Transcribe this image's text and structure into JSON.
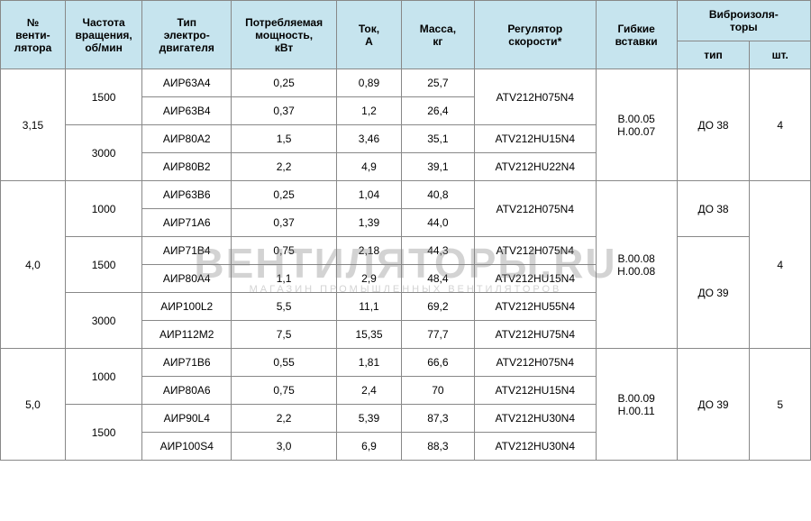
{
  "watermark": {
    "big": "ВЕНТИЛЯТОРЫ.RU",
    "small": "МАГАЗИН ПРОМЫШЛЕННЫХ ВЕНТИЛЯТОРОВ"
  },
  "headers": {
    "c0": "№\nвенти-\nлятора",
    "c1": "Частота\nвращения,\nоб/мин",
    "c2": "Тип\nэлектро-\nдвигателя",
    "c3": "Потребляемая\nмощность,\nкВт",
    "c4": "Ток,\nА",
    "c5": "Масса,\nкг",
    "c6": "Регулятор\nскорости*",
    "c7": "Гибкие\nвставки",
    "vibro": "Виброизоля-\nторы",
    "c8": "тип",
    "c9": "шт."
  },
  "g": [
    {
      "fan": "3,15",
      "inserts": "В.00.05\nН.00.07",
      "vtype": "ДО 38",
      "vqty": "4",
      "blocks": [
        {
          "rpm": "1500",
          "reg1": "ATV212H075N4",
          "reg1span": 2,
          "rows": [
            {
              "motor": "АИР63А4",
              "pow": "0,25",
              "amp": "0,89",
              "mass": "25,7"
            },
            {
              "motor": "АИР63В4",
              "pow": "0,37",
              "amp": "1,2",
              "mass": "26,4"
            }
          ]
        },
        {
          "rpm": "3000",
          "rows": [
            {
              "motor": "АИР80А2",
              "pow": "1,5",
              "amp": "3,46",
              "mass": "35,1",
              "reg": "ATV212HU15N4"
            },
            {
              "motor": "АИР80В2",
              "pow": "2,2",
              "amp": "4,9",
              "mass": "39,1",
              "reg": "ATV212HU22N4"
            }
          ]
        }
      ]
    },
    {
      "fan": "4,0",
      "inserts": "В.00.08\nН.00.08",
      "vqty": "4",
      "vtypes": [
        {
          "label": "ДО 38",
          "span": 2
        },
        {
          "label": "ДО 39",
          "span": 4
        }
      ],
      "blocks": [
        {
          "rpm": "1000",
          "reg1": "ATV212H075N4",
          "reg1span": 2,
          "rows": [
            {
              "motor": "АИР63В6",
              "pow": "0,25",
              "amp": "1,04",
              "mass": "40,8"
            },
            {
              "motor": "АИР71А6",
              "pow": "0,37",
              "amp": "1,39",
              "mass": "44,0"
            }
          ]
        },
        {
          "rpm": "1500",
          "rows": [
            {
              "motor": "АИР71В4",
              "pow": "0,75",
              "amp": "2,18",
              "mass": "44,3",
              "reg": "ATV212H075N4"
            },
            {
              "motor": "АИР80А4",
              "pow": "1,1",
              "amp": "2,9",
              "mass": "48,4",
              "reg": "ATV212HU15N4"
            }
          ]
        },
        {
          "rpm": "3000",
          "rows": [
            {
              "motor": "АИР100L2",
              "pow": "5,5",
              "amp": "11,1",
              "mass": "69,2",
              "reg": "ATV212HU55N4"
            },
            {
              "motor": "АИР112М2",
              "pow": "7,5",
              "amp": "15,35",
              "mass": "77,7",
              "reg": "ATV212HU75N4"
            }
          ]
        }
      ]
    },
    {
      "fan": "5,0",
      "inserts": "В.00.09\nН.00.11",
      "vtype": "ДО 39",
      "vqty": "5",
      "blocks": [
        {
          "rpm": "1000",
          "rows": [
            {
              "motor": "АИР71В6",
              "pow": "0,55",
              "amp": "1,81",
              "mass": "66,6",
              "reg": "ATV212H075N4"
            },
            {
              "motor": "АИР80А6",
              "pow": "0,75",
              "amp": "2,4",
              "mass": "70",
              "reg": "ATV212HU15N4"
            }
          ]
        },
        {
          "rpm": "1500",
          "rows": [
            {
              "motor": "АИР90L4",
              "pow": "2,2",
              "amp": "5,39",
              "mass": "87,3",
              "reg": "ATV212HU30N4"
            },
            {
              "motor": "АИР100S4",
              "pow": "3,0",
              "amp": "6,9",
              "mass": "88,3",
              "reg": "ATV212HU30N4"
            }
          ]
        }
      ]
    }
  ],
  "colWidths": [
    "8%",
    "9.5%",
    "11%",
    "13%",
    "8%",
    "9%",
    "15%",
    "10%",
    "9%",
    "7.5%"
  ],
  "style": {
    "header_bg": "#c6e4ee",
    "border": "#888888",
    "font": "Arial",
    "fontsize": 12
  }
}
